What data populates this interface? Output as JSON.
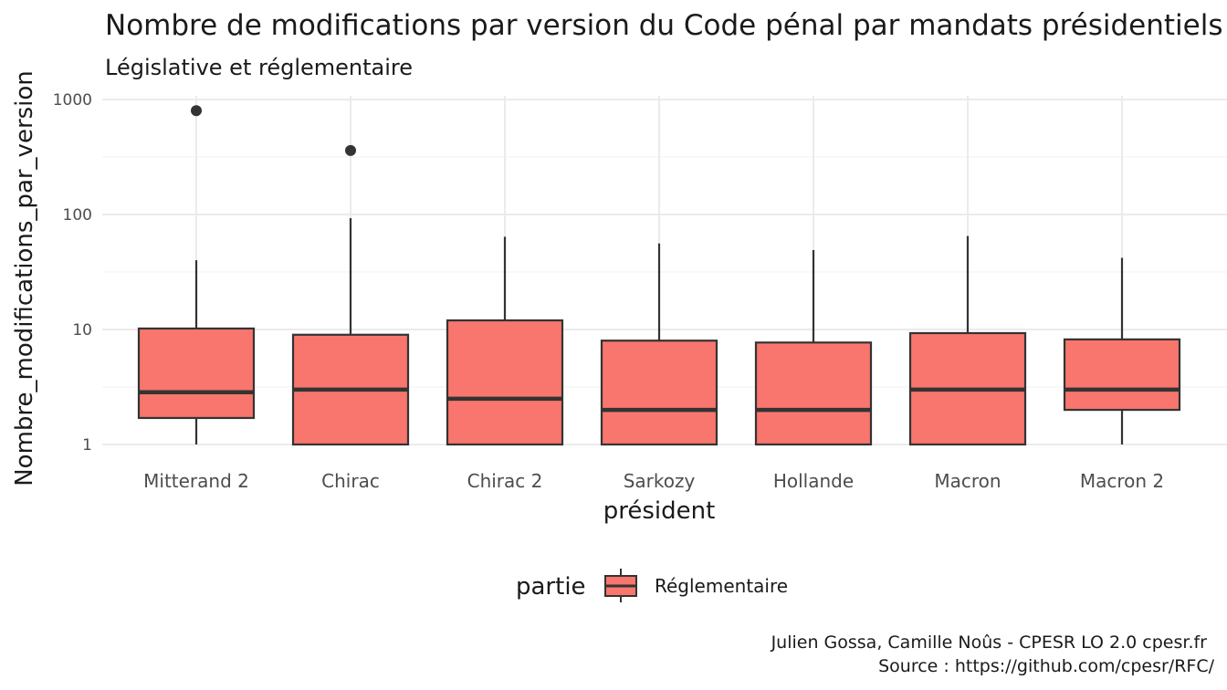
{
  "chart_data": {
    "type": "boxplot",
    "title": "Nombre de modifications par version du Code pénal par mandats présidentiels",
    "subtitle": "Législative et réglementaire",
    "xlabel": "président",
    "ylabel": "Nombre_modifications_par_version",
    "yscale": "log10",
    "ylim": [
      1,
      1000
    ],
    "yticks": [
      1,
      10,
      100,
      1000
    ],
    "ytick_labels": [
      "1",
      "10",
      "100",
      "1000"
    ],
    "grid": true,
    "fill_color": "#F8766D",
    "categories": [
      "Mitterand 2",
      "Chirac",
      "Chirac 2",
      "Sarkozy",
      "Hollande",
      "Macron",
      "Macron 2"
    ],
    "boxes": [
      {
        "category": "Mitterand 2",
        "whisker_low": 1,
        "q1": 1.7,
        "median": 2.85,
        "q3": 10.2,
        "whisker_high": 40,
        "outliers": [
          800
        ]
      },
      {
        "category": "Chirac",
        "whisker_low": 1,
        "q1": 1,
        "median": 3,
        "q3": 9,
        "whisker_high": 93,
        "outliers": [
          360
        ]
      },
      {
        "category": "Chirac 2",
        "whisker_low": 1,
        "q1": 1,
        "median": 2.5,
        "q3": 12,
        "whisker_high": 64,
        "outliers": []
      },
      {
        "category": "Sarkozy",
        "whisker_low": 1,
        "q1": 1,
        "median": 2,
        "q3": 8,
        "whisker_high": 56,
        "outliers": []
      },
      {
        "category": "Hollande",
        "whisker_low": 1,
        "q1": 1,
        "median": 2,
        "q3": 7.7,
        "whisker_high": 49,
        "outliers": []
      },
      {
        "category": "Macron",
        "whisker_low": 1,
        "q1": 1,
        "median": 3,
        "q3": 9.3,
        "whisker_high": 65,
        "outliers": []
      },
      {
        "category": "Macron 2",
        "whisker_low": 1,
        "q1": 2,
        "median": 3,
        "q3": 8.2,
        "whisker_high": 42,
        "outliers": []
      }
    ],
    "legend": {
      "title": "partie",
      "entries": [
        "Réglementaire"
      ],
      "placement": "bottom"
    },
    "caption": [
      "Julien Gossa, Camille Noûs - CPESR LO 2.0 cpesr.fr",
      "Source : https://github.com/cpesr/RFC/"
    ]
  }
}
